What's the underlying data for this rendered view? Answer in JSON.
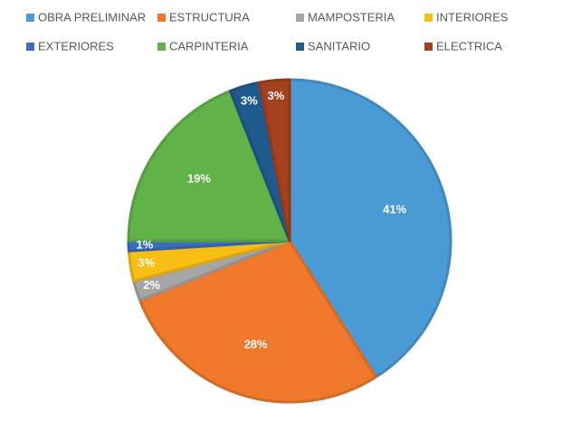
{
  "chart_data": {
    "type": "pie",
    "title": "",
    "legend_position": "top",
    "categories": [
      "OBRA PRELIMINAR",
      "ESTRUCTURA",
      "MAMPOSTERIA",
      "INTERIORES",
      "EXTERIORES",
      "CARPINTERIA",
      "SANITARIO",
      "ELECTRICA"
    ],
    "values": [
      41,
      28,
      2,
      3,
      1,
      19,
      3,
      3
    ],
    "labels": [
      "41%",
      "28%",
      "2%",
      "3%",
      "1%",
      "19%",
      "3%",
      "3%"
    ],
    "colors": [
      "#4a9ad6",
      "#f0782a",
      "#a5a5a5",
      "#f8be14",
      "#3a6ec0",
      "#62b24a",
      "#1f5a8e",
      "#a5401e"
    ]
  }
}
